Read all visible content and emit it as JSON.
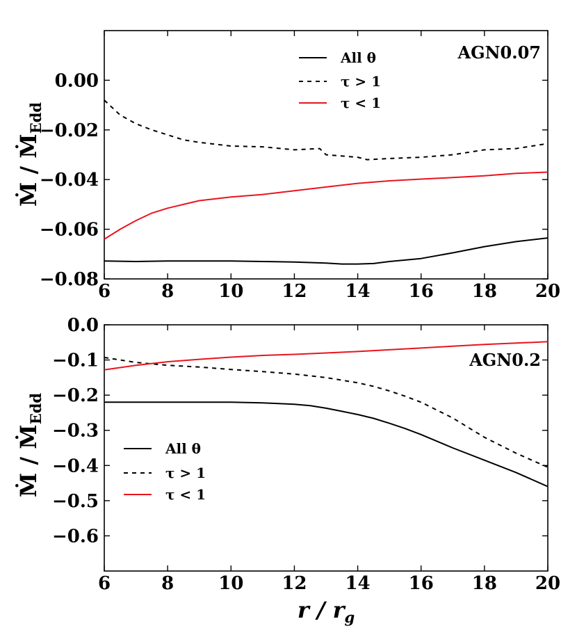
{
  "chart_data": [
    {
      "type": "line",
      "annotation": "AGN0.07",
      "xlabel": "",
      "ylabel": "Ṁ / Ṁ",
      "ylabel_sub": "Edd",
      "xlim": [
        6,
        20
      ],
      "ylim": [
        -0.08,
        0.02
      ],
      "xticks": [
        6,
        8,
        10,
        12,
        14,
        16,
        18,
        20
      ],
      "xtick_labels": [
        "6",
        "8",
        "10",
        "12",
        "14",
        "16",
        "18",
        "20"
      ],
      "yticks": [
        -0.08,
        -0.06,
        -0.04,
        -0.02,
        0.0
      ],
      "ytick_labels": [
        "−0.08",
        "−0.06",
        "−0.04",
        "−0.02",
        "0.00"
      ],
      "legend_position": "top-center",
      "series": [
        {
          "name": "All θ",
          "color": "#000000",
          "dash": "solid",
          "x": [
            6,
            7,
            8,
            9,
            10,
            11,
            12,
            13,
            13.5,
            14,
            14.5,
            15,
            16,
            17,
            18,
            19,
            20
          ],
          "y": [
            -0.0728,
            -0.073,
            -0.0728,
            -0.0728,
            -0.0728,
            -0.073,
            -0.0732,
            -0.0736,
            -0.074,
            -0.074,
            -0.0738,
            -0.073,
            -0.0718,
            -0.0695,
            -0.067,
            -0.065,
            -0.0635
          ]
        },
        {
          "name": "τ > 1",
          "color": "#000000",
          "dash": "dashed",
          "x": [
            6,
            6.5,
            7,
            7.5,
            8,
            8.5,
            9,
            10,
            11,
            12,
            12.8,
            13,
            14,
            14.3,
            15,
            16,
            17,
            18,
            19,
            20
          ],
          "y": [
            -0.008,
            -0.014,
            -0.0175,
            -0.02,
            -0.022,
            -0.024,
            -0.025,
            -0.0265,
            -0.0268,
            -0.028,
            -0.0275,
            -0.03,
            -0.031,
            -0.032,
            -0.0315,
            -0.031,
            -0.03,
            -0.028,
            -0.0275,
            -0.0255
          ]
        },
        {
          "name": "τ < 1",
          "color": "#e8141e",
          "dash": "solid",
          "x": [
            6,
            6.5,
            7,
            7.5,
            8,
            8.5,
            9,
            10,
            11,
            12,
            13,
            14,
            15,
            16,
            17,
            18,
            19,
            20
          ],
          "y": [
            -0.064,
            -0.06,
            -0.0565,
            -0.0535,
            -0.0515,
            -0.05,
            -0.0485,
            -0.047,
            -0.046,
            -0.0445,
            -0.043,
            -0.0415,
            -0.0405,
            -0.0398,
            -0.0392,
            -0.0385,
            -0.0375,
            -0.037
          ]
        }
      ]
    },
    {
      "type": "line",
      "annotation": "AGN0.2",
      "xlabel": "r / r",
      "xlabel_sub": "g",
      "ylabel": "Ṁ / Ṁ",
      "ylabel_sub": "Edd",
      "xlim": [
        6,
        20
      ],
      "ylim": [
        -0.7,
        0.0
      ],
      "xticks": [
        6,
        8,
        10,
        12,
        14,
        16,
        18,
        20
      ],
      "xtick_labels": [
        "6",
        "8",
        "10",
        "12",
        "14",
        "16",
        "18",
        "20"
      ],
      "yticks": [
        -0.6,
        -0.5,
        -0.4,
        -0.3,
        -0.2,
        -0.1,
        0.0
      ],
      "ytick_labels": [
        "−0.6",
        "−0.5",
        "−0.4",
        "−0.3",
        "−0.2",
        "−0.1",
        "0.0"
      ],
      "legend_position": "lower-left",
      "series": [
        {
          "name": "All θ",
          "color": "#000000",
          "dash": "solid",
          "x": [
            6,
            7,
            8,
            9,
            10,
            11,
            12,
            12.5,
            13,
            13.5,
            14,
            14.5,
            15,
            15.5,
            16,
            17,
            18,
            19,
            20
          ],
          "y": [
            -0.22,
            -0.22,
            -0.22,
            -0.22,
            -0.22,
            -0.222,
            -0.226,
            -0.23,
            -0.237,
            -0.246,
            -0.255,
            -0.266,
            -0.28,
            -0.295,
            -0.312,
            -0.35,
            -0.385,
            -0.42,
            -0.46
          ]
        },
        {
          "name": "τ > 1",
          "color": "#000000",
          "dash": "dashed",
          "x": [
            6,
            7,
            8,
            9,
            10,
            11,
            12,
            13,
            14,
            14.5,
            15,
            15.5,
            16,
            17,
            18,
            19,
            20
          ],
          "y": [
            -0.093,
            -0.107,
            -0.115,
            -0.12,
            -0.127,
            -0.133,
            -0.14,
            -0.15,
            -0.165,
            -0.175,
            -0.188,
            -0.203,
            -0.22,
            -0.265,
            -0.32,
            -0.365,
            -0.405
          ]
        },
        {
          "name": "τ < 1",
          "color": "#e8141e",
          "dash": "solid",
          "x": [
            6,
            7,
            8,
            9,
            10,
            11,
            12,
            13,
            14,
            15,
            16,
            17,
            18,
            19,
            20
          ],
          "y": [
            -0.128,
            -0.115,
            -0.105,
            -0.098,
            -0.092,
            -0.087,
            -0.084,
            -0.08,
            -0.076,
            -0.071,
            -0.066,
            -0.061,
            -0.056,
            -0.052,
            -0.048
          ]
        }
      ]
    }
  ]
}
